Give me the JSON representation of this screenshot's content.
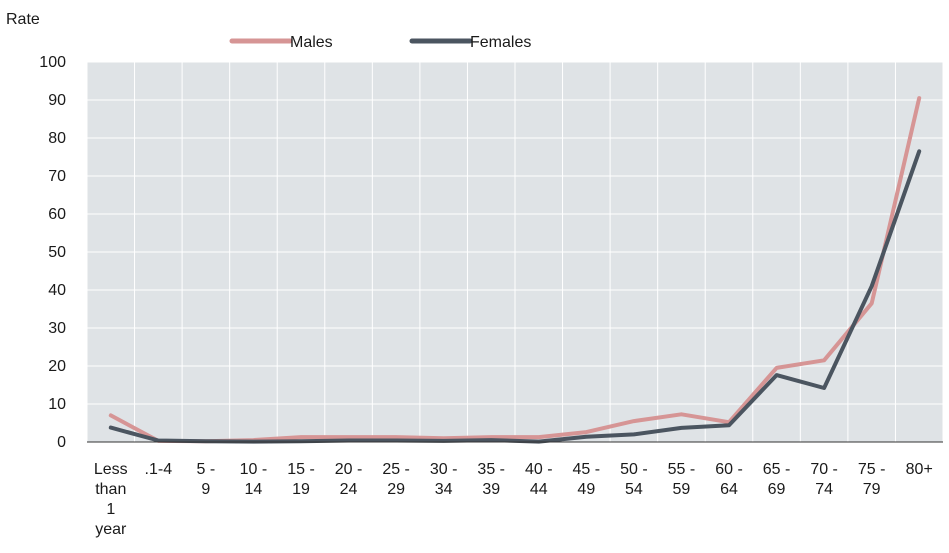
{
  "chart_data": {
    "type": "line",
    "title": "",
    "ylabel": "Rate",
    "xlabel": "",
    "ylim": [
      0,
      100
    ],
    "yticks": [
      0,
      10,
      20,
      30,
      40,
      50,
      60,
      70,
      80,
      90,
      100
    ],
    "grid": true,
    "legend_position": "top-center",
    "categories": [
      [
        "Less",
        "than",
        "1",
        "year"
      ],
      [
        ".1-4"
      ],
      [
        "5 -",
        "9"
      ],
      [
        "10 -",
        "14"
      ],
      [
        "15 -",
        "19"
      ],
      [
        "20 -",
        "24"
      ],
      [
        "25 -",
        "29"
      ],
      [
        "30 -",
        "34"
      ],
      [
        "35 -",
        "39"
      ],
      [
        "40 -",
        "44"
      ],
      [
        "45 -",
        "49"
      ],
      [
        "50 -",
        "54"
      ],
      [
        "55 -",
        "59"
      ],
      [
        "60 -",
        "64"
      ],
      [
        "65 -",
        "69"
      ],
      [
        "70 -",
        "74"
      ],
      [
        "75 -",
        "79"
      ],
      [
        "80+"
      ]
    ],
    "series": [
      {
        "name": "Males",
        "color": "#d69595",
        "values": [
          7,
          0.3,
          0.2,
          0.5,
          1.3,
          1.3,
          1.3,
          1,
          1.3,
          1.3,
          2.6,
          5.5,
          7.3,
          5.2,
          19.5,
          21.5,
          36.5,
          90.5
        ]
      },
      {
        "name": "Females",
        "color": "#4b5560",
        "values": [
          3.8,
          0.4,
          0.2,
          0.1,
          0.2,
          0.4,
          0.4,
          0.3,
          0.5,
          0.1,
          1.4,
          2,
          3.7,
          4.4,
          17.6,
          14.2,
          41,
          76.5
        ]
      }
    ]
  }
}
